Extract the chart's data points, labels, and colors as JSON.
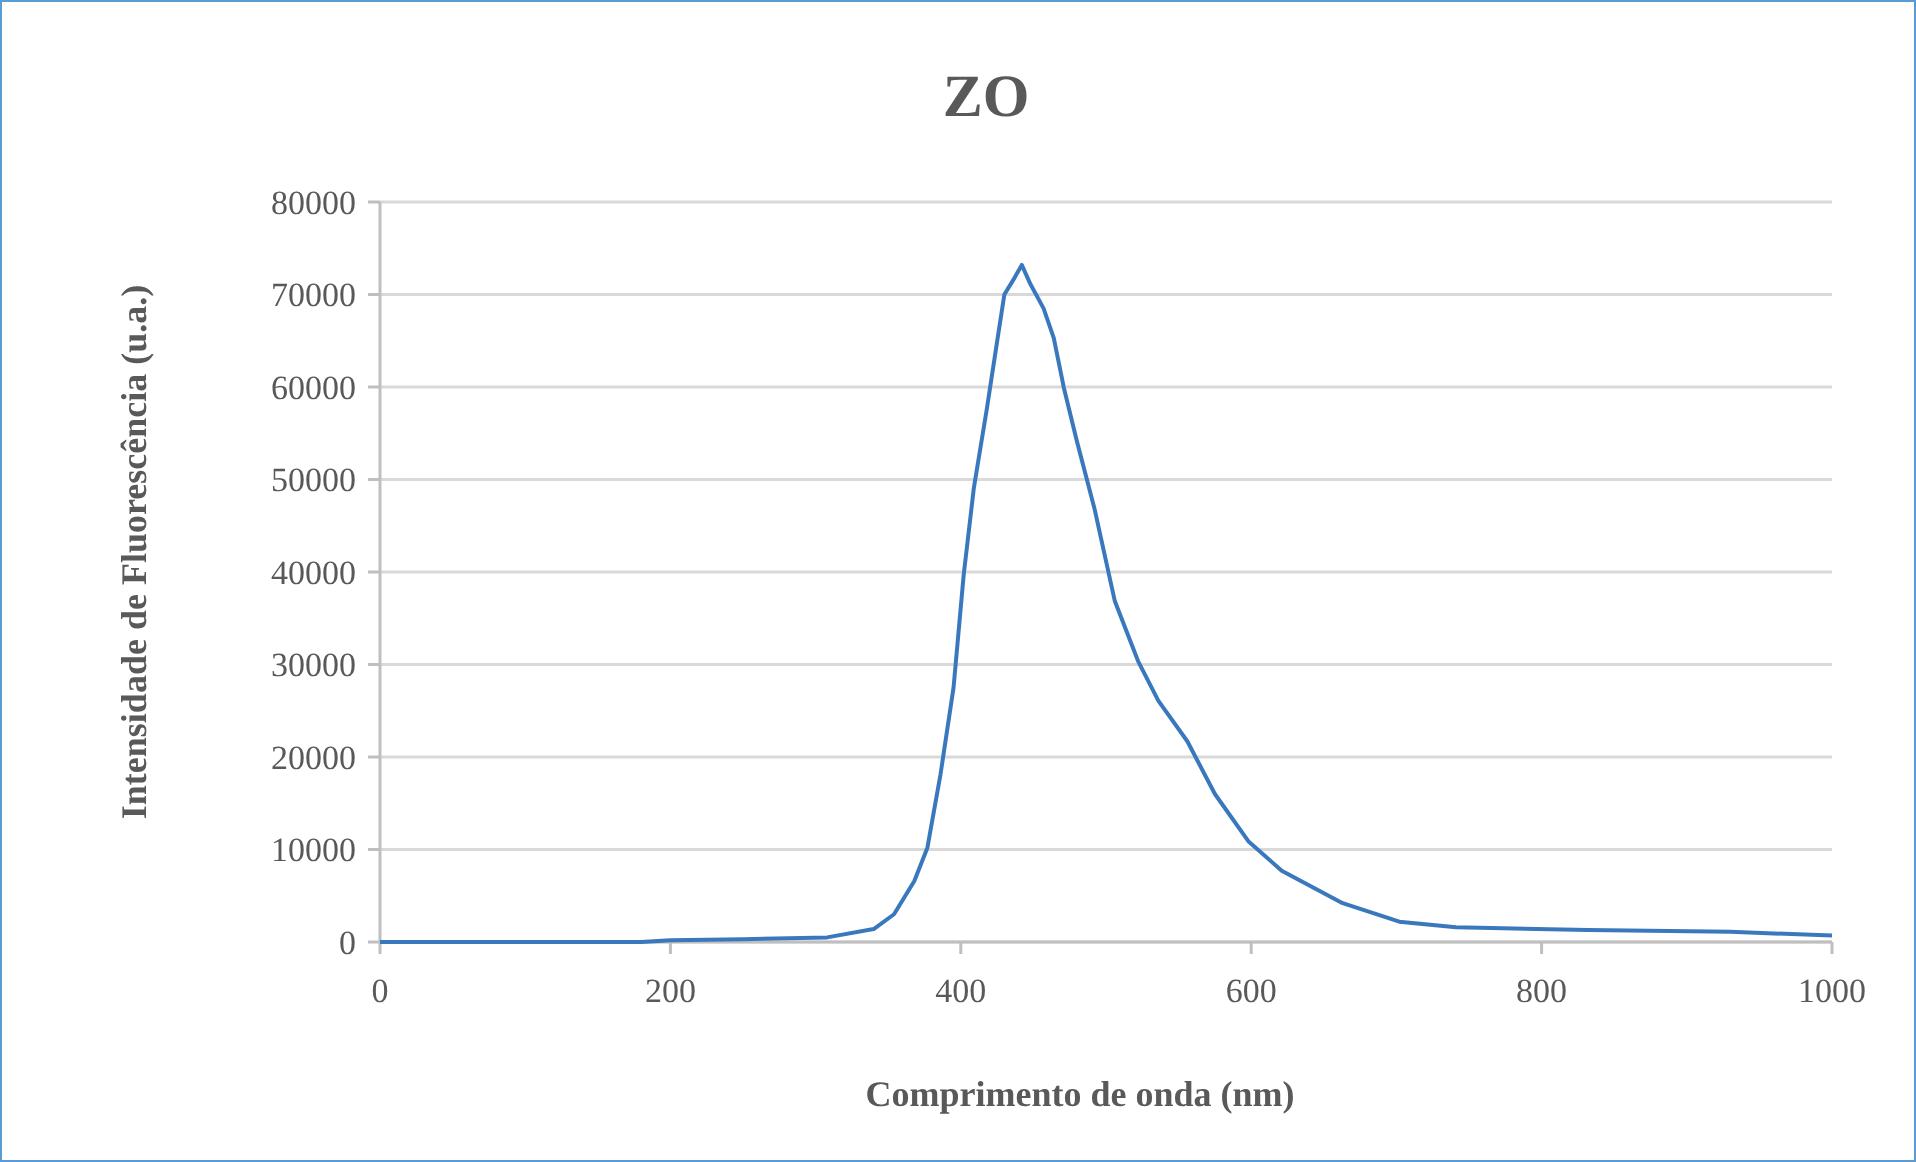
{
  "chart_data": {
    "type": "line",
    "title": "ZO",
    "xlabel": "Comprimento de onda (nm)",
    "ylabel": "Intensidade de Fluorescência (u.a.)",
    "xlim": [
      0,
      1000
    ],
    "xticks": [
      0,
      200,
      400,
      600,
      800,
      1000
    ],
    "ylim": [
      0,
      80000
    ],
    "yticks": [
      0,
      10000,
      20000,
      30000,
      40000,
      50000,
      60000,
      70000,
      80000
    ],
    "grid": "y",
    "series": [
      {
        "color": "#3a78be",
        "x": [
          0,
          100,
          180,
          200,
          250,
          308,
          340,
          354,
          368,
          377,
          386,
          395,
          402,
          409,
          418,
          425,
          430,
          437,
          442,
          448,
          457,
          464,
          471,
          480,
          492,
          506,
          522,
          536,
          556,
          575,
          598,
          621,
          663,
          702,
          741,
          832,
          930,
          1000
        ],
        "values": [
          0,
          0,
          0,
          200,
          300,
          500,
          1400,
          3000,
          6600,
          10200,
          18100,
          27500,
          39700,
          49100,
          57700,
          64900,
          70000,
          71800,
          73200,
          71100,
          68500,
          65300,
          59900,
          54100,
          46900,
          36900,
          30400,
          26100,
          21700,
          16000,
          10900,
          7700,
          4200,
          2200,
          1600,
          1300,
          1100,
          700
        ]
      }
    ]
  }
}
